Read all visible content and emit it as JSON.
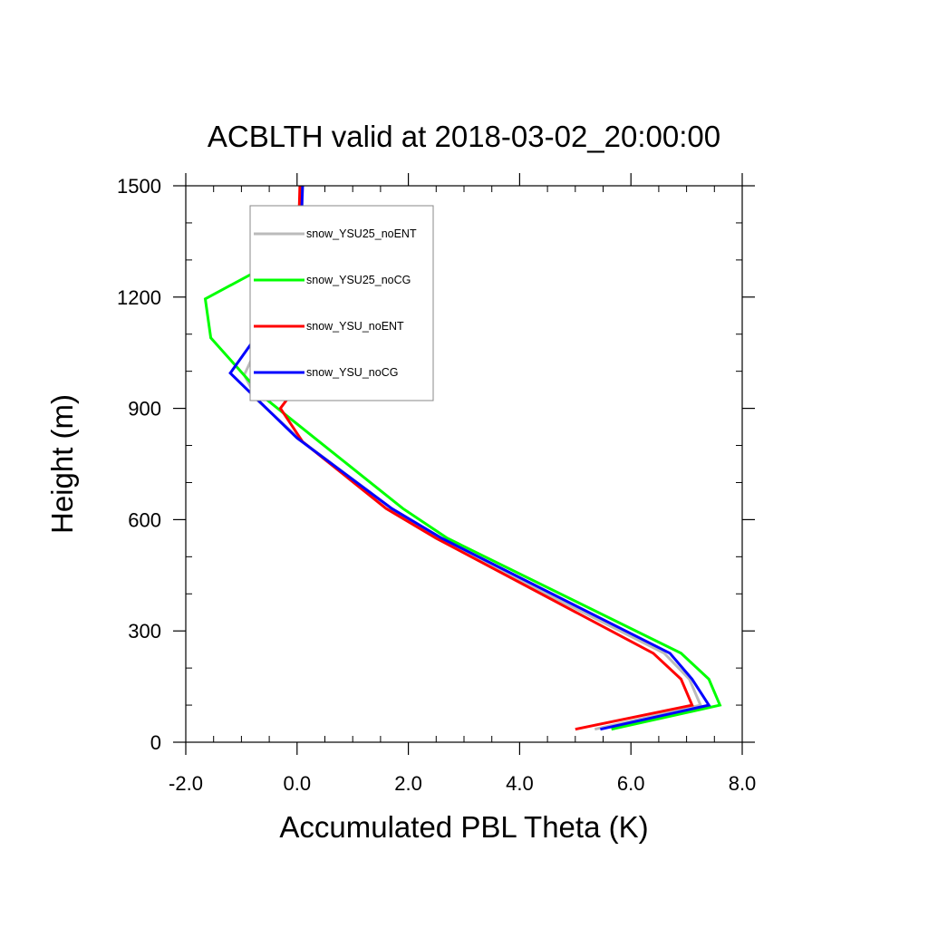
{
  "chart_data": {
    "type": "line",
    "title": "ACBLTH valid at 2018-03-02_20:00:00",
    "xlabel": "Accumulated PBL Theta (K)",
    "ylabel": "Height (m)",
    "xlim": [
      -2.0,
      8.0
    ],
    "ylim": [
      0,
      1500
    ],
    "xticks": [
      -2.0,
      0.0,
      2.0,
      4.0,
      6.0,
      8.0
    ],
    "xtick_labels": [
      "-2.0",
      "0.0",
      "2.0",
      "4.0",
      "6.0",
      "8.0"
    ],
    "yticks": [
      0,
      300,
      600,
      900,
      1200,
      1500
    ],
    "ytick_labels": [
      "0",
      "300",
      "600",
      "900",
      "1200",
      "1500"
    ],
    "grid": false,
    "legend_position": "top-left",
    "series": [
      {
        "name": "snow_YSU25_noENT",
        "color": "#bbbbbb",
        "points": [
          [
            5.35,
            35
          ],
          [
            7.25,
            100
          ],
          [
            7.05,
            170
          ],
          [
            6.6,
            240
          ],
          [
            2.5,
            550
          ],
          [
            1.7,
            630
          ],
          [
            0.1,
            810
          ],
          [
            -0.7,
            920
          ],
          [
            -0.95,
            990
          ],
          [
            -0.7,
            1070
          ],
          [
            -0.1,
            1180
          ],
          [
            0.05,
            1220
          ],
          [
            0.1,
            1500
          ]
        ]
      },
      {
        "name": "snow_YSU25_noCG",
        "color": "#00ff00",
        "points": [
          [
            5.65,
            35
          ],
          [
            7.6,
            100
          ],
          [
            7.4,
            170
          ],
          [
            6.9,
            240
          ],
          [
            2.7,
            550
          ],
          [
            1.9,
            630
          ],
          [
            -0.1,
            870
          ],
          [
            -0.6,
            930
          ],
          [
            -1.55,
            1090
          ],
          [
            -1.65,
            1195
          ],
          [
            -0.35,
            1300
          ],
          [
            0.0,
            1410
          ],
          [
            0.1,
            1500
          ]
        ]
      },
      {
        "name": "snow_YSU_noENT",
        "color": "#ff0000",
        "points": [
          [
            5.0,
            35
          ],
          [
            7.1,
            100
          ],
          [
            6.9,
            170
          ],
          [
            6.4,
            240
          ],
          [
            2.5,
            550
          ],
          [
            1.6,
            630
          ],
          [
            0.1,
            810
          ],
          [
            -0.3,
            900
          ],
          [
            -0.15,
            930
          ],
          [
            0.0,
            1000
          ],
          [
            0.0,
            1230
          ],
          [
            0.05,
            1500
          ]
        ]
      },
      {
        "name": "snow_YSU_noCG",
        "color": "#0000ff",
        "points": [
          [
            5.45,
            35
          ],
          [
            7.4,
            100
          ],
          [
            7.1,
            170
          ],
          [
            6.7,
            240
          ],
          [
            2.6,
            550
          ],
          [
            1.7,
            630
          ],
          [
            0.0,
            820
          ],
          [
            -0.55,
            900
          ],
          [
            -1.2,
            995
          ],
          [
            -0.75,
            1090
          ],
          [
            -0.05,
            1195
          ],
          [
            0.05,
            1300
          ],
          [
            0.1,
            1500
          ]
        ]
      }
    ]
  }
}
